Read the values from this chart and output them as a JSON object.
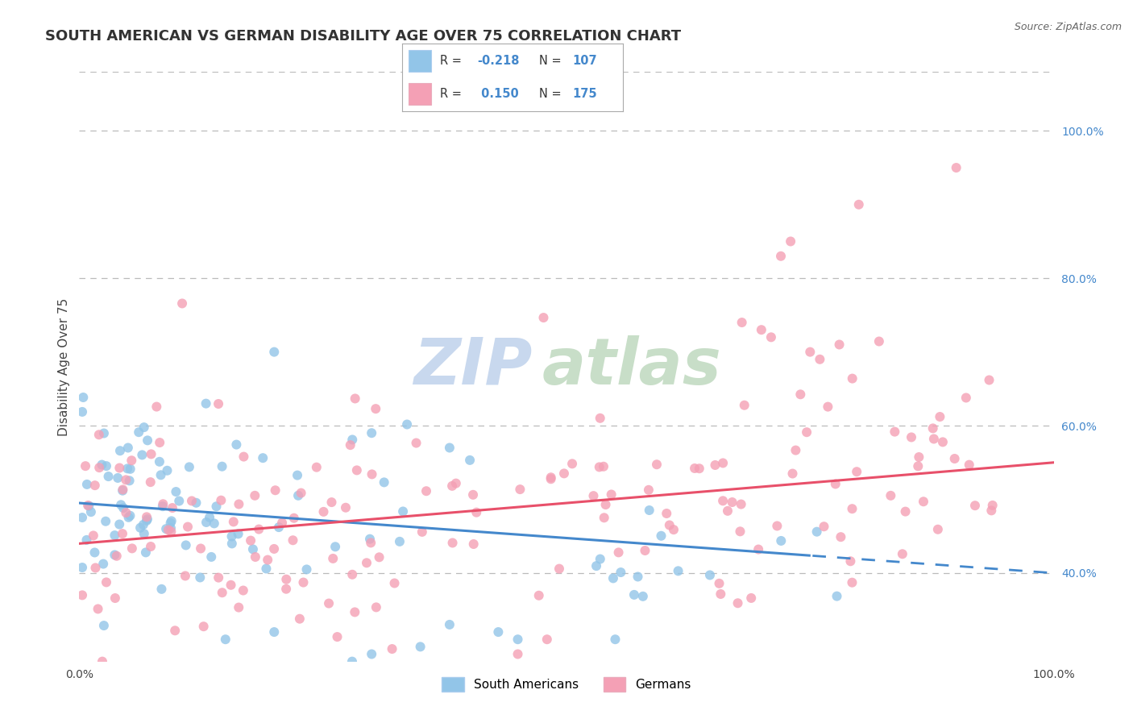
{
  "title": "SOUTH AMERICAN VS GERMAN DISABILITY AGE OVER 75 CORRELATION CHART",
  "source_text": "Source: ZipAtlas.com",
  "ylabel": "Disability Age Over 75",
  "xlim": [
    0,
    100
  ],
  "ylim": [
    28,
    108
  ],
  "y_tick_right_vals": [
    40,
    60,
    80,
    100
  ],
  "y_tick_right_labels": [
    "40.0%",
    "60.0%",
    "80.0%",
    "100.0%"
  ],
  "blue_color": "#92C5E8",
  "blue_line_color": "#4488CC",
  "pink_color": "#F4A0B5",
  "pink_line_color": "#E8506A",
  "R_blue": -0.218,
  "N_blue": 107,
  "R_pink": 0.15,
  "N_pink": 175,
  "blue_intercept": 49.5,
  "blue_slope": -0.095,
  "pink_intercept": 44.0,
  "pink_slope": 0.11,
  "watermark_zip": "ZIP",
  "watermark_atlas": "atlas",
  "watermark_color_zip": "#C5D8ED",
  "watermark_color_atlas": "#C5D8C5",
  "background_color": "#FFFFFF",
  "grid_color": "#BBBBBB",
  "legend_N_color": "#4488CC",
  "title_fontsize": 13,
  "axis_label_fontsize": 11,
  "tick_fontsize": 10
}
